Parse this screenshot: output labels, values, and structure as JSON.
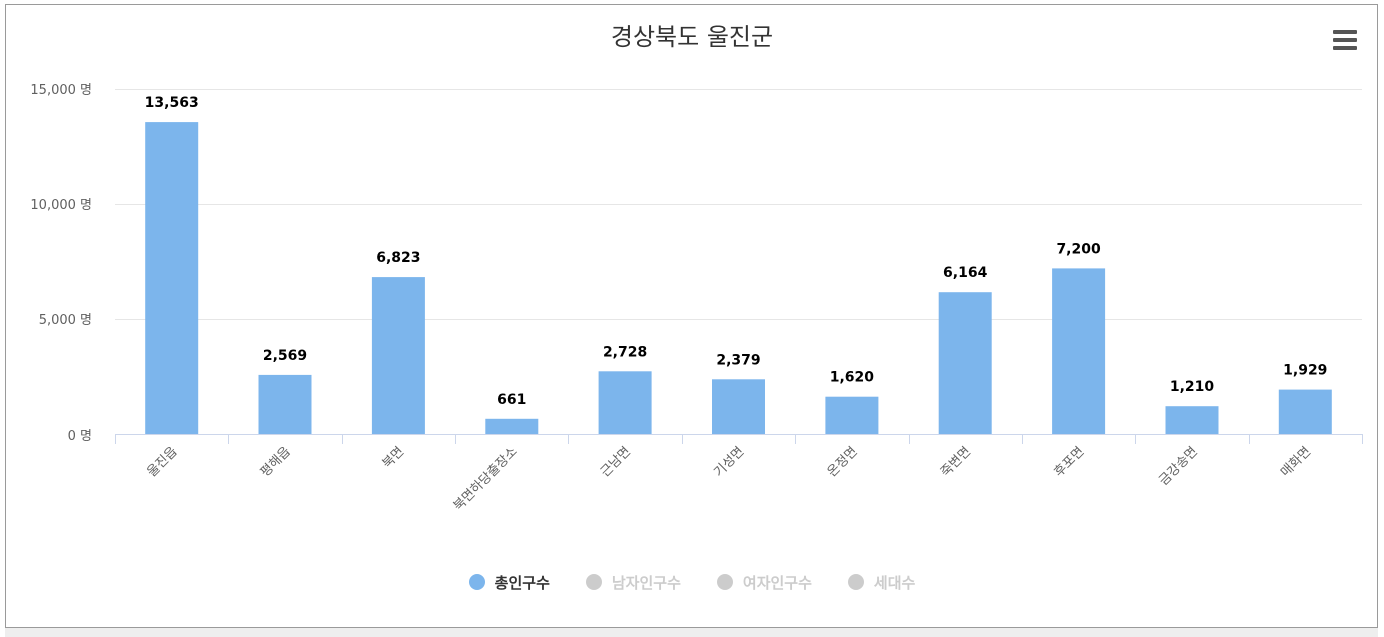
{
  "chart_data": {
    "type": "bar",
    "title": "경상북도 울진군",
    "categories": [
      "울진읍",
      "평해읍",
      "북면",
      "북면하당출장소",
      "근남면",
      "기성면",
      "온정면",
      "죽변면",
      "후포면",
      "금강송면",
      "매화면"
    ],
    "series": [
      {
        "name": "총인구수",
        "values": [
          13563,
          2569,
          6823,
          661,
          2728,
          2379,
          1620,
          6164,
          7200,
          1210,
          1929
        ],
        "data_labels": [
          "13,563",
          "2,569",
          "6,823",
          "661",
          "2,728",
          "2,379",
          "1,620",
          "6,164",
          "7,200",
          "1,210",
          "1,929"
        ]
      }
    ],
    "ylim": [
      0,
      15000
    ],
    "yticks": [
      0,
      5000,
      10000,
      15000
    ],
    "ytick_labels": [
      "0 명",
      "5,000 명",
      "10,000 명",
      "15,000 명"
    ],
    "grid": true,
    "legend_position": "bottom-center"
  },
  "legend": [
    {
      "label": "총인구수",
      "active": true
    },
    {
      "label": "남자인구수",
      "active": false
    },
    {
      "label": "여자인구수",
      "active": false
    },
    {
      "label": "세대수",
      "active": false
    }
  ],
  "colors": {
    "bar": "#7cb5ec",
    "inactive": "#cccccc",
    "active_text": "#333333",
    "grid": "#e6e6e6",
    "axis": "#ccd6eb"
  },
  "icons": {
    "menu": "hamburger-menu-icon"
  }
}
